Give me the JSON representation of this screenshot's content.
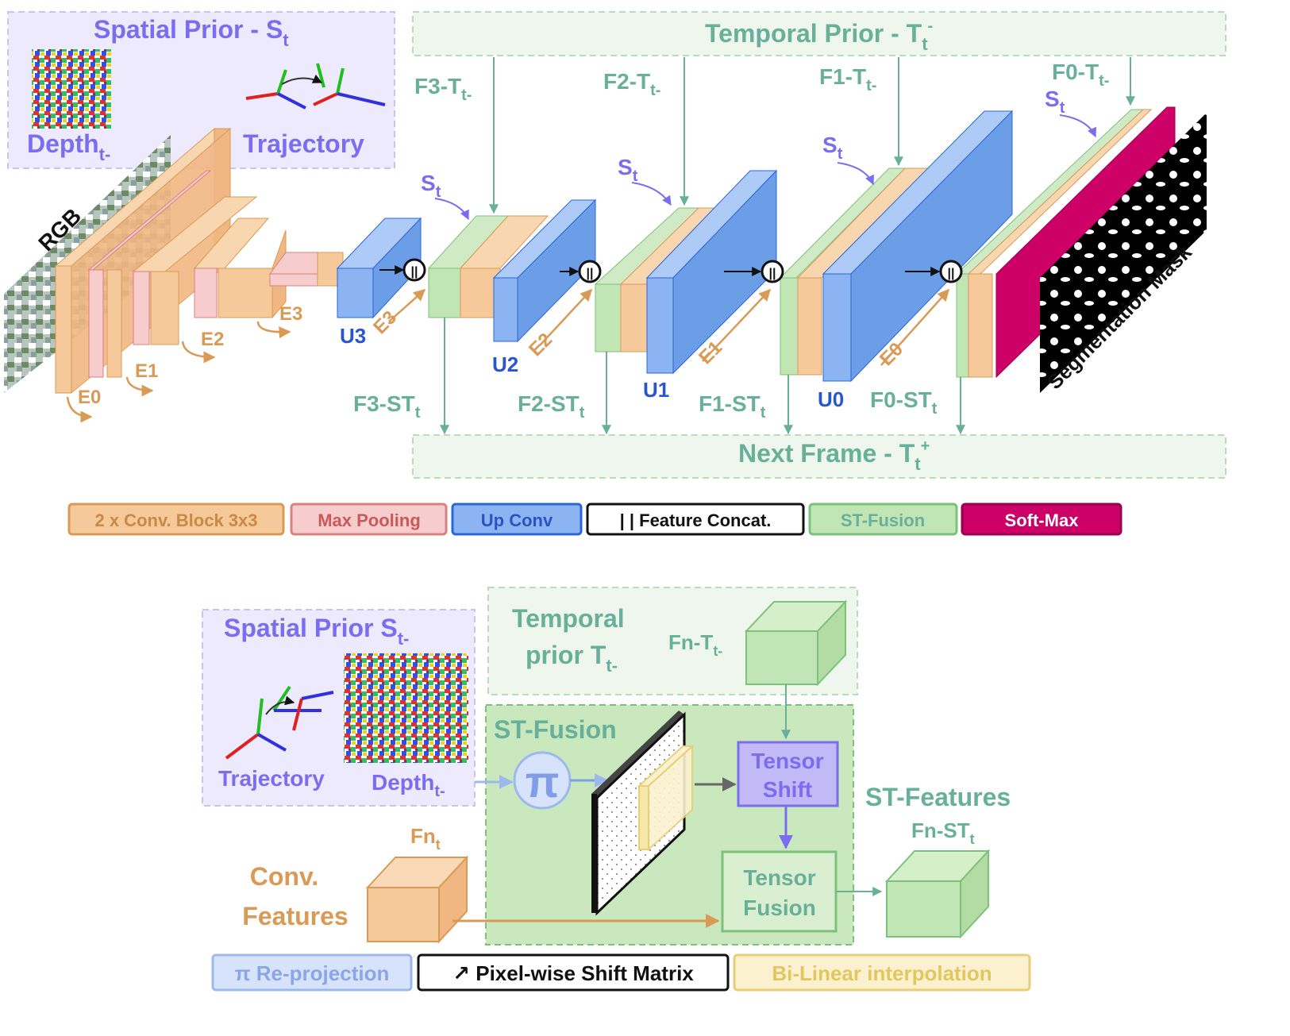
{
  "top": {
    "spatial_prior_title": "Spatial Prior - S",
    "spatial_prior_sub": "t",
    "depth_label": "Depth",
    "depth_sub": "t-",
    "trajectory_label": "Trajectory",
    "temporal_prior_title": "Temporal Prior - T",
    "temporal_prior_sub": "t",
    "temporal_prior_sup": "-",
    "rgb_label": "RGB",
    "segmentation_label": "Segmentation Mask",
    "next_frame_title": "Next Frame - T",
    "next_frame_sub": "t",
    "next_frame_sup": "+",
    "s_label": "S",
    "s_sub": "t",
    "encoder_labels": [
      "E0",
      "E1",
      "E2",
      "E3"
    ],
    "decoder_labels": [
      "U3",
      "U2",
      "U1",
      "U0"
    ],
    "skip_labels": [
      "E3",
      "E2",
      "E1",
      "E0"
    ],
    "temporal_inputs": [
      {
        "base": "F3-T",
        "sub": "t-"
      },
      {
        "base": "F2-T",
        "sub": "t-"
      },
      {
        "base": "F1-T",
        "sub": "t-"
      },
      {
        "base": "F0-T",
        "sub": "t-"
      }
    ],
    "st_outputs": [
      {
        "base": "F3-ST",
        "sub": "t"
      },
      {
        "base": "F2-ST",
        "sub": "t"
      },
      {
        "base": "F1-ST",
        "sub": "t"
      },
      {
        "base": "F0-ST",
        "sub": "t"
      }
    ],
    "concat_symbol": "||"
  },
  "legend_top": [
    {
      "label": "2 x Conv. Block 3x3",
      "fill": "#f6c99a",
      "stroke": "#d99a55",
      "text": "#c98a45"
    },
    {
      "label": "Max Pooling",
      "fill": "#f7cccc",
      "stroke": "#d98080",
      "text": "#c85a5a"
    },
    {
      "label": "Up Conv",
      "fill": "#8db4f2",
      "stroke": "#2a66d8",
      "text": "#2a55c0"
    },
    {
      "label": "| | Feature Concat.",
      "fill": "#ffffff",
      "stroke": "#111111",
      "text": "#111111"
    },
    {
      "label": "ST-Fusion",
      "fill": "#c2e5b5",
      "stroke": "#7cc27a",
      "text": "#68b09a"
    },
    {
      "label": "Soft-Max",
      "fill": "#cc0066",
      "stroke": "#990050",
      "text": "#ffffff"
    }
  ],
  "bottom": {
    "spatial_prior_title": "Spatial Prior S",
    "spatial_prior_sub": "t-",
    "trajectory_label": "Trajectory",
    "depth_label": "Depth",
    "depth_sub": "t-",
    "temporal_prior_line1": "Temporal",
    "temporal_prior_line2": "prior T",
    "temporal_prior_sub": "t-",
    "fn_t_minus": "Fn-T",
    "fn_t_minus_sub": "t-",
    "st_fusion_title": "ST-Fusion",
    "pi_symbol": "π",
    "tensor_shift_line1": "Tensor",
    "tensor_shift_line2": "Shift",
    "tensor_fusion_line1": "Tensor",
    "tensor_fusion_line2": "Fusion",
    "st_features_title": "ST-Features",
    "fn_st": "Fn-ST",
    "fn_st_sub": "t",
    "fn_t": "Fn",
    "fn_t_sub": "t",
    "conv_features_line1": "Conv.",
    "conv_features_line2": "Features"
  },
  "legend_bottom": [
    {
      "label": "π Re-projection",
      "fill": "#d7e3fa",
      "stroke": "#9db8ee",
      "text": "#8aa6e6"
    },
    {
      "label": "↗ Pixel-wise Shift Matrix",
      "fill": "#ffffff",
      "stroke": "#111111",
      "text": "#111111"
    },
    {
      "label": "Bi-Linear interpolation",
      "fill": "#fbf1cf",
      "stroke": "#e7cf7a",
      "text": "#e2c760"
    }
  ]
}
